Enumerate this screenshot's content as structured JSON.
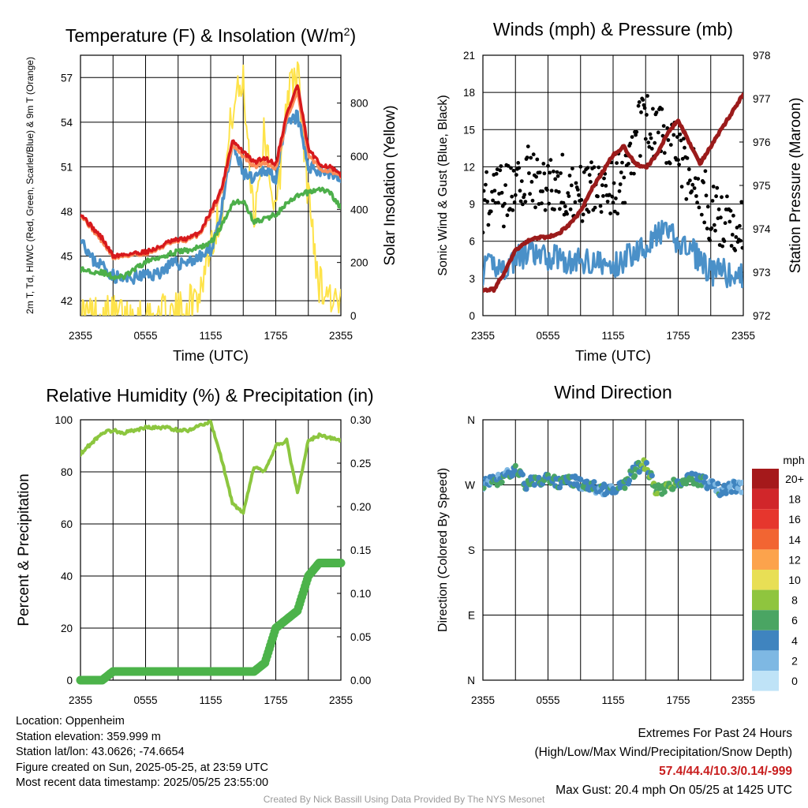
{
  "chart_data": [
    {
      "type": "line",
      "title": "Temperature (F) & Insolation (W/m²)",
      "xlabel": "Time (UTC)",
      "ylabel": "2m T, Td, HI/WC (Red, Green, Scarlet/Blue) & 9m T (Orange)",
      "y2label": "Solar Insolation (Yellow)",
      "x_ticks": [
        "2355",
        "0555",
        "1155",
        "1755",
        "2355"
      ],
      "y_ticks": [
        "42",
        "45",
        "48",
        "51",
        "54",
        "57"
      ],
      "y2_ticks": [
        "0",
        "200",
        "400",
        "600",
        "800"
      ],
      "ylim": [
        41,
        58.5
      ],
      "y2lim": [
        0,
        980
      ],
      "x_hours": [
        0,
        1,
        2,
        3,
        4,
        5,
        6,
        7,
        8,
        9,
        10,
        11,
        12,
        13,
        14,
        15,
        16,
        17,
        18,
        19,
        20,
        21,
        22,
        23,
        24
      ],
      "series": [
        {
          "name": "2m T",
          "color": "#d7191c",
          "axis": "left",
          "values": [
            47.9,
            47.0,
            46.2,
            45.0,
            45.1,
            45.2,
            45.3,
            45.5,
            45.9,
            46.1,
            46.2,
            46.6,
            48.0,
            49.5,
            52.8,
            52.0,
            51.3,
            51.6,
            51.2,
            54.5,
            56.5,
            52.2,
            51.2,
            51.0,
            50.4
          ]
        },
        {
          "name": "9m T",
          "color": "#fc8d59",
          "axis": "left",
          "values": [
            47.8,
            46.9,
            46.0,
            44.9,
            45.0,
            45.1,
            45.2,
            45.4,
            45.8,
            46.0,
            46.1,
            46.5,
            47.8,
            49.3,
            52.5,
            51.7,
            51.0,
            51.3,
            50.9,
            54.2,
            56.0,
            51.8,
            50.9,
            50.7,
            50.3
          ]
        },
        {
          "name": "Td",
          "color": "#4daf4a",
          "axis": "left",
          "values": [
            44.1,
            44.0,
            43.9,
            43.6,
            43.6,
            44.1,
            44.6,
            44.9,
            45.1,
            45.3,
            45.4,
            45.6,
            45.9,
            47.0,
            48.6,
            48.7,
            47.3,
            47.5,
            47.8,
            48.5,
            49.0,
            49.3,
            49.5,
            49.3,
            48.2
          ]
        },
        {
          "name": "HI/WC",
          "color": "#4a90c8",
          "axis": "left",
          "values": [
            46.5,
            44.8,
            44.4,
            43.7,
            43.4,
            43.6,
            43.7,
            43.8,
            44.3,
            44.5,
            44.7,
            44.9,
            45.4,
            48.0,
            52.5,
            50.6,
            50.0,
            50.9,
            50.3,
            53.8,
            54.4,
            51.0,
            50.8,
            50.6,
            50.2
          ]
        },
        {
          "name": "Solar Insolation",
          "color": "#fee34a",
          "axis": "right",
          "values": [
            5,
            2,
            2,
            2,
            2,
            2,
            2,
            2,
            2,
            8,
            40,
            90,
            280,
            400,
            780,
            880,
            380,
            700,
            360,
            820,
            920,
            450,
            120,
            80,
            20
          ]
        }
      ]
    },
    {
      "type": "line",
      "title": "Winds (mph) & Pressure (mb)",
      "xlabel": "Time (UTC)",
      "ylabel": "Sonic Wind & Gust (Blue, Black)",
      "y2label": "Station Pressure (Maroon)",
      "x_ticks": [
        "2355",
        "0555",
        "1155",
        "1755",
        "2355"
      ],
      "y_ticks": [
        "0",
        "3",
        "6",
        "9",
        "12",
        "15",
        "18",
        "21"
      ],
      "y2_ticks": [
        "972",
        "973",
        "974",
        "975",
        "976",
        "977",
        "978"
      ],
      "ylim": [
        0,
        21
      ],
      "y2lim": [
        972,
        978
      ],
      "x_hours": [
        0,
        1,
        2,
        3,
        4,
        5,
        6,
        7,
        8,
        9,
        10,
        11,
        12,
        13,
        14,
        15,
        16,
        17,
        18,
        19,
        20,
        21,
        22,
        23,
        24
      ],
      "series": [
        {
          "name": "Sonic Wind",
          "color": "#4a90c8",
          "axis": "left",
          "values": [
            3.6,
            4.2,
            3.8,
            4.6,
            5.0,
            4.8,
            4.6,
            4.9,
            4.2,
            4.4,
            4.5,
            4.1,
            3.8,
            4.6,
            5.2,
            5.8,
            6.4,
            6.8,
            5.8,
            5.4,
            4.6,
            3.4,
            3.6,
            3.0,
            3.2
          ]
        },
        {
          "name": "Gust",
          "color": "#000000",
          "axis": "left",
          "values": [
            9.2,
            10.2,
            9.6,
            11.2,
            11.5,
            10.6,
            10.0,
            10.8,
            10.2,
            9.6,
            10.3,
            10.7,
            10.2,
            11.4,
            13.6,
            16.6,
            14.8,
            14.6,
            12.9,
            11.4,
            10.5,
            8.2,
            7.8,
            7.0,
            7.4
          ]
        },
        {
          "name": "Station Pressure",
          "color": "#9b1b1b",
          "axis": "right",
          "values": [
            972.6,
            972.6,
            973.0,
            973.5,
            973.7,
            973.8,
            973.8,
            973.9,
            974.1,
            974.4,
            974.9,
            975.3,
            975.7,
            975.9,
            975.5,
            975.4,
            975.7,
            976.2,
            976.5,
            976.0,
            975.5,
            975.9,
            976.3,
            976.7,
            977.1
          ]
        }
      ]
    },
    {
      "type": "line",
      "title": "Relative Humidity (%) & Precipitation (in)",
      "xlabel": "",
      "ylabel": "Percent & Precipitation",
      "x_ticks": [
        "2355",
        "0555",
        "1155",
        "1755",
        "2355"
      ],
      "y_ticks": [
        "0",
        "20",
        "40",
        "60",
        "80",
        "100"
      ],
      "y2_ticks": [
        "0.00",
        "0.05",
        "0.10",
        "0.15",
        "0.20",
        "0.25",
        "0.30"
      ],
      "ylim": [
        0,
        100
      ],
      "y2lim": [
        0,
        0.3
      ],
      "x_hours": [
        0,
        1,
        2,
        3,
        4,
        5,
        6,
        7,
        8,
        9,
        10,
        11,
        12,
        13,
        14,
        15,
        16,
        17,
        18,
        19,
        20,
        21,
        22,
        23,
        24
      ],
      "series": [
        {
          "name": "Relative Humidity",
          "color": "#8cc63f",
          "axis": "left",
          "values": [
            87,
            91,
            95,
            96,
            95,
            96,
            97,
            97,
            97,
            96,
            96,
            98,
            99,
            85,
            68,
            64,
            82,
            80,
            90,
            92,
            72,
            92,
            94,
            93,
            92
          ]
        },
        {
          "name": "Precipitation",
          "color": "#4cb34a",
          "axis": "right",
          "values": [
            0.0,
            0.0,
            0.0,
            0.01,
            0.01,
            0.01,
            0.01,
            0.01,
            0.01,
            0.01,
            0.01,
            0.01,
            0.01,
            0.01,
            0.01,
            0.01,
            0.01,
            0.02,
            0.06,
            0.07,
            0.08,
            0.12,
            0.135,
            0.135,
            0.135
          ]
        }
      ]
    },
    {
      "type": "scatter",
      "title": "Wind Direction",
      "ylabel": "Direction (Colored By Speed)",
      "x_ticks": [
        "2355",
        "0555",
        "1155",
        "1755",
        "2355"
      ],
      "y_ticks": [
        "N",
        "E",
        "S",
        "W",
        "N"
      ],
      "ylim": [
        0,
        360
      ],
      "x_hours": [
        0,
        1,
        2,
        3,
        4,
        5,
        6,
        7,
        8,
        9,
        10,
        11,
        12,
        13,
        14,
        15,
        16,
        17,
        18,
        19,
        20,
        21,
        22,
        23,
        24
      ],
      "direction_deg": [
        272,
        275,
        282,
        290,
        270,
        278,
        276,
        274,
        278,
        272,
        268,
        264,
        262,
        270,
        290,
        300,
        262,
        266,
        275,
        280,
        276,
        270,
        262,
        268,
        266
      ],
      "speed_mph": [
        3.6,
        4.2,
        3.8,
        4.6,
        5.0,
        4.8,
        4.6,
        4.9,
        4.2,
        4.4,
        4.5,
        4.1,
        3.8,
        4.6,
        5.2,
        5.8,
        6.4,
        6.8,
        5.8,
        5.4,
        4.6,
        3.4,
        3.6,
        3.0,
        3.2
      ],
      "legend_unit": "mph",
      "legend_labels": [
        "20+",
        "18",
        "16",
        "14",
        "12",
        "10",
        "8",
        "6",
        "4",
        "2",
        "0"
      ],
      "legend_colors": [
        "#a5191b",
        "#d1262a",
        "#e6362d",
        "#f26532",
        "#fca34c",
        "#e8df55",
        "#8fc53e",
        "#4aa563",
        "#3f84bf",
        "#7eb8e3",
        "#bfe3f7"
      ]
    }
  ],
  "info": {
    "location": "Location: Oppenheim",
    "elevation": "Station elevation: 359.999 m",
    "latlon": "Station lat/lon: 43.0626; -74.6654",
    "created": "Figure created on Sun, 2025-05-25, at 23:59 UTC",
    "recent": "Most recent data timestamp: 2025/05/25 23:55:00"
  },
  "extremes": {
    "title": "Extremes For Past 24 Hours",
    "subtitle": "(High/Low/Max Wind/Precipitation/Snow Depth)",
    "values": "57.4/44.4/10.3/0.14/-999",
    "max_gust": "Max Gust: 20.4 mph On 05/25 at 1425 UTC"
  },
  "credit": "Created By Nick Bassill Using Data Provided By The NYS Mesonet"
}
